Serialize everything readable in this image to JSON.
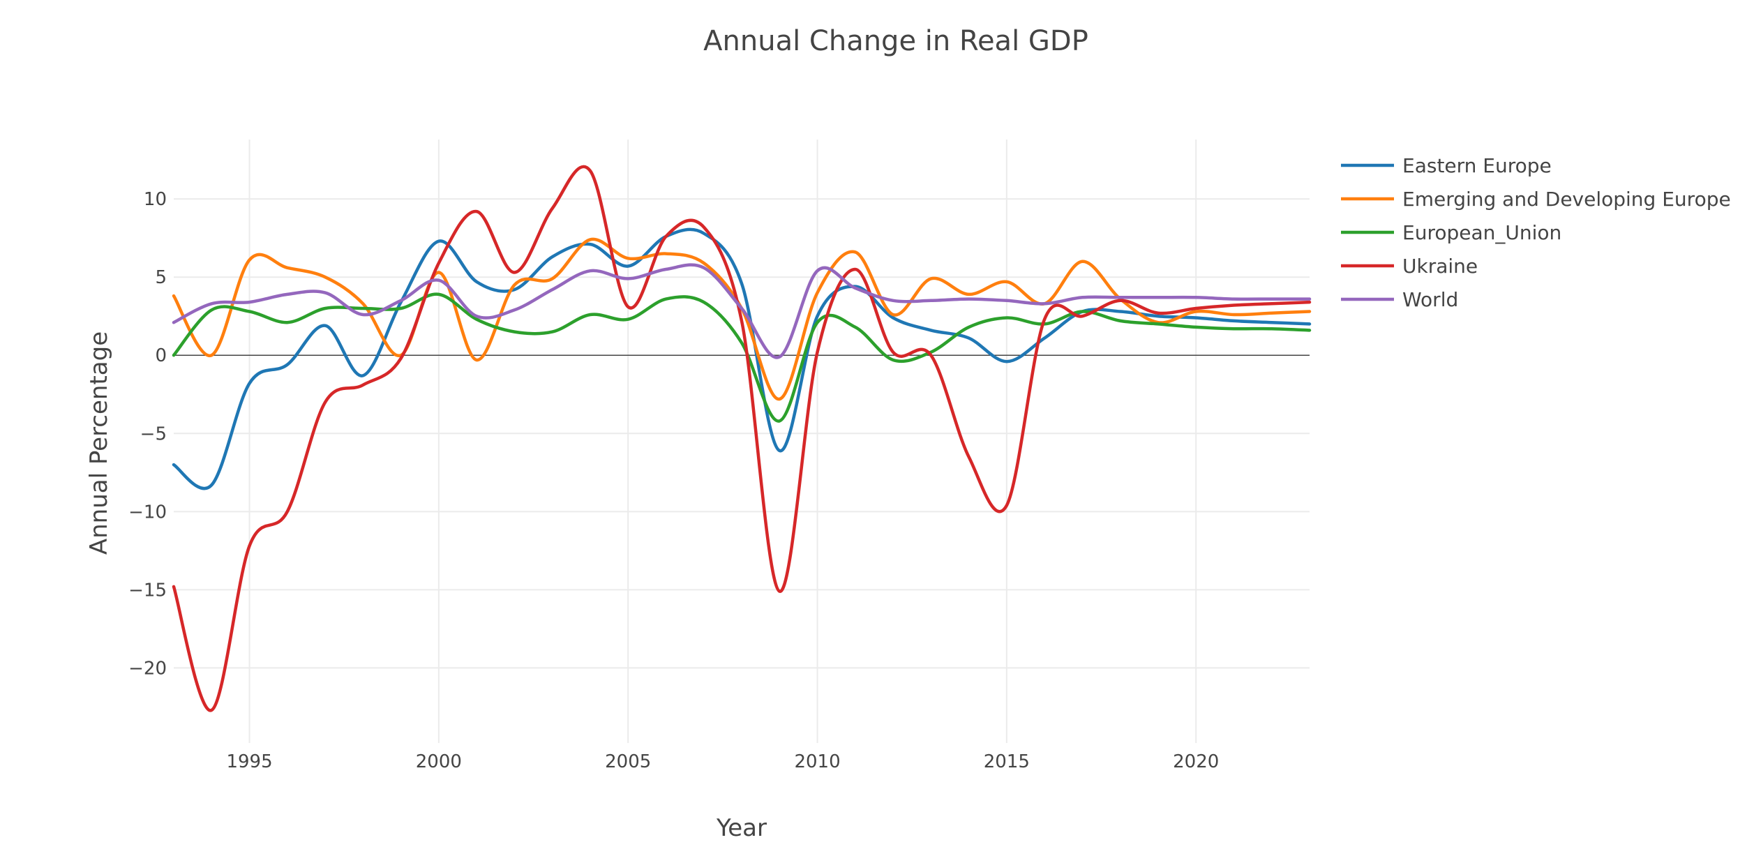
{
  "chart_data": {
    "type": "line",
    "title": "Annual Change in Real GDP",
    "xlabel": "Year",
    "ylabel": "Annual Percentage",
    "xlim": [
      1993,
      2023
    ],
    "ylim": [
      -24.8,
      13.8
    ],
    "xticks": [
      1995,
      2000,
      2005,
      2010,
      2015,
      2020
    ],
    "yticks": [
      10,
      5,
      0,
      -5,
      -10,
      -15,
      -20
    ],
    "ytick_labels": [
      "10",
      "5",
      "0",
      "−5",
      "−10",
      "−15",
      "−20"
    ],
    "grid": true,
    "zero_line": true,
    "legend_position": "top-right",
    "x": [
      1993,
      1994,
      1995,
      1996,
      1997,
      1998,
      1999,
      2000,
      2001,
      2002,
      2003,
      2004,
      2005,
      2006,
      2007,
      2008,
      2009,
      2010,
      2011,
      2012,
      2013,
      2014,
      2015,
      2016,
      2017,
      2018,
      2019,
      2020,
      2021,
      2022,
      2023
    ],
    "series": [
      {
        "name": "Eastern Europe",
        "color": "#1f77b4",
        "values": [
          -7.0,
          -8.3,
          -1.8,
          -0.6,
          1.9,
          -1.3,
          3.4,
          7.3,
          4.7,
          4.2,
          6.3,
          7.1,
          5.7,
          7.6,
          7.8,
          4.6,
          -6.1,
          2.5,
          4.4,
          2.4,
          1.6,
          1.1,
          -0.4,
          1.1,
          2.8,
          2.8,
          2.5,
          2.4,
          2.2,
          2.1,
          2.0
        ]
      },
      {
        "name": "Emerging and Developing Europe",
        "color": "#ff7f0e",
        "values": [
          3.8,
          0.0,
          6.1,
          5.6,
          5.0,
          3.3,
          0.0,
          5.3,
          -0.3,
          4.5,
          4.9,
          7.4,
          6.2,
          6.5,
          5.9,
          3.0,
          -2.8,
          4.0,
          6.6,
          2.6,
          4.9,
          3.9,
          4.7,
          3.3,
          6.0,
          3.6,
          2.1,
          2.8,
          2.6,
          2.7,
          2.8
        ]
      },
      {
        "name": "European_Union",
        "color": "#2ca02c",
        "values": [
          0.0,
          2.9,
          2.8,
          2.1,
          3.0,
          3.0,
          3.0,
          3.9,
          2.3,
          1.5,
          1.5,
          2.6,
          2.3,
          3.6,
          3.4,
          0.8,
          -4.2,
          2.1,
          1.8,
          -0.3,
          0.2,
          1.8,
          2.4,
          2.0,
          2.8,
          2.2,
          2.0,
          1.8,
          1.7,
          1.7,
          1.6
        ]
      },
      {
        "name": "Ukraine",
        "color": "#d62728",
        "values": [
          -14.8,
          -22.7,
          -12.2,
          -10.0,
          -3.0,
          -1.9,
          -0.2,
          5.9,
          9.2,
          5.3,
          9.4,
          11.8,
          3.1,
          7.6,
          8.2,
          2.2,
          -15.1,
          0.2,
          5.5,
          0.2,
          0.0,
          -6.5,
          -9.6,
          2.3,
          2.5,
          3.5,
          2.7,
          3.0,
          3.2,
          3.3,
          3.4
        ]
      },
      {
        "name": "World",
        "color": "#9467bd",
        "values": [
          2.1,
          3.3,
          3.4,
          3.9,
          4.0,
          2.6,
          3.5,
          4.8,
          2.5,
          2.9,
          4.2,
          5.4,
          4.9,
          5.5,
          5.6,
          3.0,
          -0.1,
          5.4,
          4.3,
          3.5,
          3.5,
          3.6,
          3.5,
          3.3,
          3.7,
          3.7,
          3.7,
          3.7,
          3.6,
          3.6,
          3.6
        ]
      }
    ]
  }
}
